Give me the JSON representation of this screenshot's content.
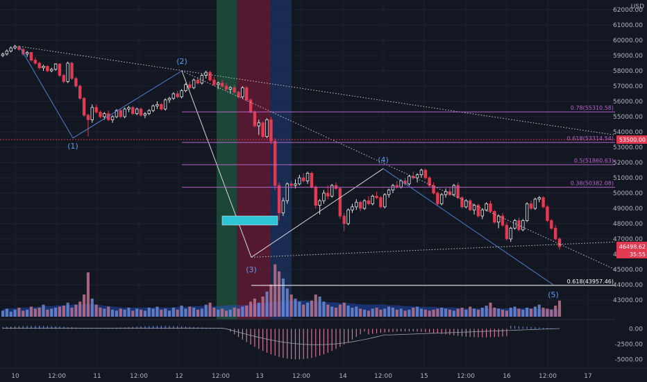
{
  "chart_data": {
    "type": "candlestick",
    "currency": "USD",
    "y_ticks": [
      43000,
      44000,
      45000,
      46000,
      47000,
      48000,
      49000,
      50000,
      51000,
      52000,
      53000,
      54000,
      55000,
      56000,
      57000,
      58000,
      59000,
      60000,
      61000,
      62000
    ],
    "ylim": [
      42100,
      62600
    ],
    "x_ticks": [
      "10",
      "12:00",
      "11",
      "12:00",
      "12",
      "12:00",
      "13",
      "12:00",
      "14",
      "12:00",
      "15",
      "12:00",
      "16",
      "12:00",
      "17"
    ],
    "current_price": "46498.62",
    "countdown": "35:55",
    "alert_price": "53500.00",
    "fib_levels": [
      {
        "label": "0.78(55310.58)",
        "price": 55310.58,
        "color": "#b665c9"
      },
      {
        "label": "0.618(53314.54)",
        "price": 53314.54,
        "color": "#b665c9"
      },
      {
        "label": "0.5(51860.63)",
        "price": 51860.63,
        "color": "#b665c9"
      },
      {
        "label": "0.38(50382.08)",
        "price": 50382.08,
        "color": "#b665c9"
      },
      {
        "label": "0.618(43957.46)",
        "price": 43957.46,
        "color": "#ffffff"
      }
    ],
    "waves": [
      {
        "label": "(1)",
        "price": 53600
      },
      {
        "label": "(2)",
        "price": 58000
      },
      {
        "label": "(3)",
        "price": 45700
      },
      {
        "label": "(4)",
        "price": 51600
      },
      {
        "label": "(5)",
        "price": 44000
      }
    ],
    "candles": [
      [
        59000,
        59200,
        58900,
        59100
      ],
      [
        59100,
        59400,
        59000,
        59300
      ],
      [
        59300,
        59600,
        59200,
        59500
      ],
      [
        59500,
        59700,
        59400,
        59600
      ],
      [
        59600,
        59650,
        59300,
        59400
      ],
      [
        59400,
        59500,
        59000,
        59100
      ],
      [
        59100,
        59300,
        58900,
        59200
      ],
      [
        59200,
        59250,
        58600,
        58700
      ],
      [
        58700,
        58900,
        58400,
        58500
      ],
      [
        58500,
        58600,
        58100,
        58200
      ],
      [
        58200,
        58400,
        58000,
        58300
      ],
      [
        58300,
        58350,
        57900,
        58000
      ],
      [
        58000,
        58200,
        57900,
        58100
      ],
      [
        58100,
        58500,
        58000,
        58450
      ],
      [
        58450,
        58500,
        57600,
        57700
      ],
      [
        57700,
        57800,
        57200,
        57300
      ],
      [
        57300,
        58600,
        57200,
        58500
      ],
      [
        58500,
        58600,
        57400,
        57500
      ],
      [
        57500,
        57600,
        56900,
        57000
      ],
      [
        57000,
        57100,
        56100,
        56200
      ],
      [
        56200,
        56300,
        55000,
        55100
      ],
      [
        55100,
        55200,
        53700,
        54800
      ],
      [
        54800,
        55800,
        54600,
        55600
      ],
      [
        55600,
        55800,
        55200,
        55300
      ],
      [
        55300,
        55400,
        54900,
        55000
      ],
      [
        55000,
        55300,
        54800,
        55200
      ],
      [
        55200,
        55400,
        54700,
        54800
      ],
      [
        54800,
        55100,
        54600,
        55000
      ],
      [
        55000,
        55500,
        54900,
        55400
      ],
      [
        55400,
        55500,
        54900,
        55000
      ],
      [
        55000,
        55600,
        54900,
        55500
      ],
      [
        55500,
        55700,
        55300,
        55600
      ],
      [
        55600,
        55700,
        55100,
        55200
      ],
      [
        55200,
        55600,
        55100,
        55500
      ],
      [
        55500,
        55600,
        55000,
        55100
      ],
      [
        55100,
        55300,
        54900,
        55200
      ],
      [
        55200,
        55500,
        55100,
        55400
      ],
      [
        55400,
        55800,
        55300,
        55700
      ],
      [
        55700,
        56000,
        55500,
        55800
      ],
      [
        55800,
        55900,
        55400,
        55500
      ],
      [
        55500,
        56200,
        55400,
        56100
      ],
      [
        56100,
        56300,
        55900,
        56200
      ],
      [
        56200,
        56600,
        56100,
        56500
      ],
      [
        56500,
        56700,
        56200,
        56300
      ],
      [
        56300,
        56800,
        56200,
        56700
      ],
      [
        56700,
        57200,
        56600,
        57100
      ],
      [
        57100,
        57300,
        56800,
        56900
      ],
      [
        56900,
        57500,
        56800,
        57400
      ],
      [
        57400,
        57600,
        57100,
        57200
      ],
      [
        57200,
        57800,
        57100,
        57700
      ],
      [
        57700,
        58000,
        57500,
        57900
      ],
      [
        57900,
        58000,
        57300,
        57400
      ],
      [
        57400,
        57600,
        57000,
        57100
      ],
      [
        57100,
        57300,
        56800,
        57200
      ],
      [
        57200,
        57400,
        56900,
        57000
      ],
      [
        57000,
        57200,
        56700,
        56800
      ],
      [
        56800,
        57000,
        56500,
        56900
      ],
      [
        56900,
        57100,
        56500,
        56600
      ],
      [
        56600,
        56700,
        56200,
        56300
      ],
      [
        56300,
        57000,
        56200,
        56900
      ],
      [
        56900,
        57000,
        56000,
        56100
      ],
      [
        56100,
        56200,
        55200,
        55300
      ],
      [
        55300,
        55400,
        54300,
        54400
      ],
      [
        54400,
        54800,
        53800,
        54600
      ],
      [
        54600,
        54700,
        53600,
        53700
      ],
      [
        53700,
        54900,
        53600,
        54800
      ],
      [
        54800,
        55000,
        53200,
        53400
      ],
      [
        53400,
        53600,
        50200,
        50500
      ],
      [
        50500,
        50700,
        48200,
        48700
      ],
      [
        48700,
        49700,
        48500,
        49500
      ],
      [
        49500,
        50700,
        49300,
        50600
      ],
      [
        50600,
        50800,
        50300,
        50500
      ],
      [
        50500,
        50900,
        50300,
        50600
      ],
      [
        50600,
        51200,
        50500,
        51000
      ],
      [
        51000,
        51300,
        50700,
        50800
      ],
      [
        50800,
        51400,
        50600,
        51300
      ],
      [
        51300,
        51400,
        50300,
        50400
      ],
      [
        50400,
        50500,
        49000,
        49200
      ],
      [
        49200,
        49600,
        48600,
        49500
      ],
      [
        49500,
        50200,
        49300,
        50000
      ],
      [
        50000,
        50500,
        49600,
        49800
      ],
      [
        49800,
        50600,
        49700,
        50500
      ],
      [
        50500,
        50700,
        50200,
        50300
      ],
      [
        50300,
        50400,
        48300,
        48500
      ],
      [
        48500,
        48700,
        47500,
        48000
      ],
      [
        48000,
        49000,
        47900,
        48900
      ],
      [
        48900,
        49300,
        48700,
        49100
      ],
      [
        49100,
        49600,
        48900,
        49400
      ],
      [
        49400,
        49500,
        48800,
        49000
      ],
      [
        49000,
        49600,
        48900,
        49500
      ],
      [
        49500,
        49800,
        49200,
        49300
      ],
      [
        49300,
        49900,
        49200,
        49800
      ],
      [
        49800,
        50100,
        49600,
        49700
      ],
      [
        49700,
        49800,
        49000,
        49100
      ],
      [
        49100,
        50000,
        49000,
        49900
      ],
      [
        49900,
        50300,
        49700,
        50200
      ],
      [
        50200,
        50600,
        50000,
        50500
      ],
      [
        50500,
        50800,
        50300,
        50400
      ],
      [
        50400,
        50900,
        50300,
        50800
      ],
      [
        50800,
        51000,
        50500,
        50600
      ],
      [
        50600,
        51200,
        50500,
        51100
      ],
      [
        51100,
        51400,
        50900,
        51000
      ],
      [
        51000,
        51300,
        50700,
        51200
      ],
      [
        51200,
        51600,
        51000,
        51500
      ],
      [
        51500,
        51600,
        50900,
        51000
      ],
      [
        51000,
        51100,
        50400,
        50500
      ],
      [
        50500,
        50700,
        49900,
        50000
      ],
      [
        50000,
        50100,
        49200,
        49300
      ],
      [
        49300,
        50000,
        49200,
        49900
      ],
      [
        49900,
        50300,
        49700,
        50100
      ],
      [
        50100,
        50400,
        49800,
        49900
      ],
      [
        49900,
        50600,
        49800,
        50500
      ],
      [
        50500,
        50700,
        49600,
        49700
      ],
      [
        49700,
        49800,
        49000,
        49100
      ],
      [
        49100,
        49600,
        49000,
        49500
      ],
      [
        49500,
        49600,
        48800,
        48900
      ],
      [
        48900,
        49300,
        48600,
        49200
      ],
      [
        49200,
        49300,
        48400,
        48500
      ],
      [
        48500,
        49000,
        48300,
        48900
      ],
      [
        48900,
        49400,
        48800,
        49300
      ],
      [
        49300,
        49500,
        48700,
        48800
      ],
      [
        48800,
        48900,
        48000,
        48100
      ],
      [
        48100,
        48600,
        47700,
        48500
      ],
      [
        48500,
        48700,
        47800,
        47900
      ],
      [
        47900,
        48100,
        46900,
        47000
      ],
      [
        47000,
        47800,
        46800,
        47700
      ],
      [
        47700,
        48300,
        47600,
        48200
      ],
      [
        48200,
        48400,
        47500,
        47600
      ],
      [
        47600,
        48300,
        47500,
        48200
      ],
      [
        48200,
        49400,
        48100,
        49300
      ],
      [
        49300,
        49500,
        48900,
        49000
      ],
      [
        49000,
        49700,
        48900,
        49600
      ],
      [
        49600,
        49800,
        49400,
        49700
      ],
      [
        49700,
        49800,
        49000,
        49100
      ],
      [
        49100,
        49200,
        48100,
        48200
      ],
      [
        48200,
        48300,
        47600,
        47700
      ],
      [
        47700,
        47900,
        46900,
        47000
      ],
      [
        47000,
        47100,
        46300,
        46500
      ]
    ],
    "volumes": [
      6,
      8,
      5,
      7,
      9,
      6,
      7,
      10,
      8,
      9,
      12,
      7,
      8,
      9,
      10,
      11,
      14,
      9,
      12,
      15,
      22,
      44,
      18,
      12,
      9,
      8,
      10,
      7,
      6,
      8,
      7,
      9,
      6,
      8,
      7,
      6,
      9,
      8,
      10,
      7,
      8,
      6,
      9,
      7,
      11,
      8,
      10,
      9,
      7,
      8,
      12,
      14,
      9,
      7,
      8,
      6,
      7,
      9,
      8,
      10,
      11,
      15,
      18,
      14,
      20,
      25,
      32,
      52,
      45,
      38,
      28,
      22,
      18,
      15,
      12,
      14,
      16,
      22,
      20,
      15,
      12,
      10,
      9,
      12,
      14,
      11,
      9,
      10,
      8,
      7,
      6,
      8,
      9,
      7,
      8,
      10,
      9,
      7,
      8,
      6,
      7,
      9,
      10,
      8,
      7,
      6,
      7,
      8,
      9,
      8,
      7,
      6,
      8,
      9,
      7,
      10,
      8,
      7,
      9,
      11,
      14,
      9,
      8,
      7,
      6,
      9,
      10,
      8,
      7,
      9,
      8,
      10,
      12,
      9,
      8,
      7,
      11,
      16
    ],
    "volume_ma": [
      10,
      11,
      11,
      12,
      12,
      13,
      14,
      14,
      15,
      15,
      16,
      16,
      17,
      16,
      15,
      14,
      13,
      12,
      12,
      12,
      12,
      12,
      12,
      12,
      12,
      13,
      13,
      14,
      14,
      14,
      14,
      14,
      15,
      15,
      15,
      16,
      17,
      18,
      19,
      20,
      21,
      21,
      21,
      21,
      20,
      20,
      19,
      19,
      18,
      18,
      17,
      16,
      16,
      16,
      16,
      15,
      15,
      14,
      14,
      13,
      13,
      13,
      12,
      12,
      12,
      11,
      11,
      11,
      11,
      11,
      11,
      11,
      11,
      11,
      11,
      11,
      10,
      10,
      10,
      10
    ],
    "oscillator": {
      "y_ticks": [
        "0.00",
        "-2500.00",
        "-5000.00"
      ],
      "range": [
        -6200,
        1300
      ]
    }
  }
}
